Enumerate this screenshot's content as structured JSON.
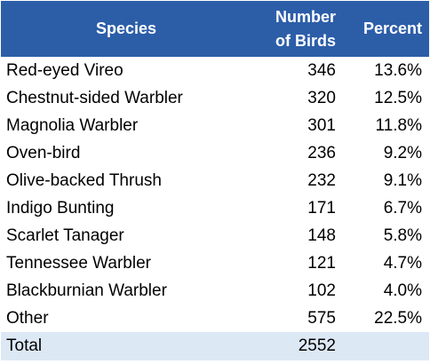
{
  "table": {
    "headers": {
      "species": "Species",
      "number_line1": "Number",
      "number_line2": "of Birds",
      "percent": "Percent"
    },
    "rows": [
      {
        "species": "Red-eyed Vireo",
        "count": "346",
        "percent": "13.6%"
      },
      {
        "species": "Chestnut-sided Warbler",
        "count": "320",
        "percent": "12.5%"
      },
      {
        "species": "Magnolia Warbler",
        "count": "301",
        "percent": "11.8%"
      },
      {
        "species": "Oven-bird",
        "count": "236",
        "percent": "9.2%"
      },
      {
        "species": "Olive-backed Thrush",
        "count": "232",
        "percent": "9.1%"
      },
      {
        "species": "Indigo Bunting",
        "count": "171",
        "percent": "6.7%"
      },
      {
        "species": "Scarlet Tanager",
        "count": "148",
        "percent": "5.8%"
      },
      {
        "species": "Tennessee Warbler",
        "count": "121",
        "percent": "4.7%"
      },
      {
        "species": "Blackburnian Warbler",
        "count": "102",
        "percent": "4.0%"
      },
      {
        "species": "Other",
        "count": "575",
        "percent": "22.5%"
      }
    ],
    "total": {
      "label": "Total",
      "count": "2552",
      "percent": ""
    }
  },
  "colors": {
    "header_bg": "#2c5ea8",
    "header_text": "#ffffff",
    "total_bg": "#dde8f5"
  }
}
